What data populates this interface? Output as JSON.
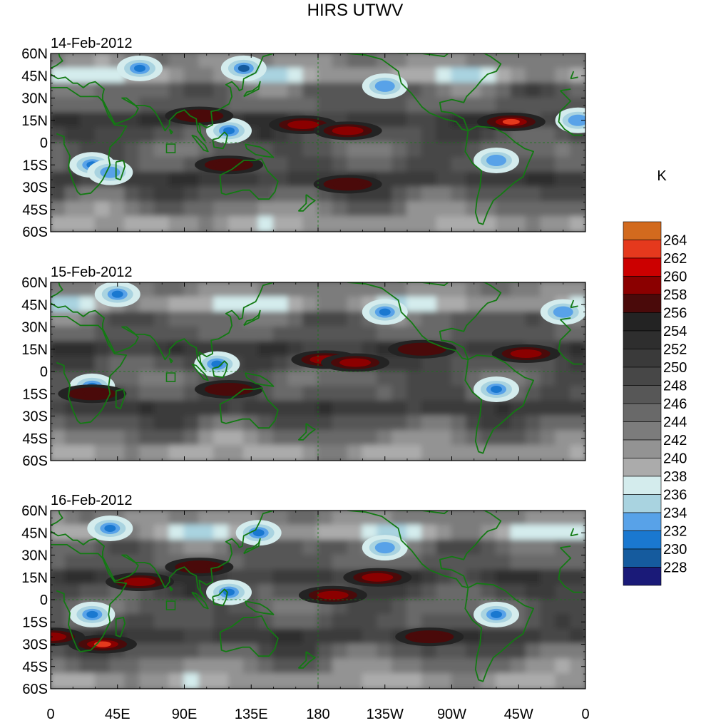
{
  "chart_data": {
    "type": "heatmap",
    "title": "HIRS UTWV",
    "unit_label": "K",
    "panels": [
      {
        "date": "14-Feb-2012",
        "hot_bands": [
          {
            "lon": 170,
            "lat": 12,
            "peak": 259
          },
          {
            "lon": 200,
            "lat": 8,
            "peak": 258
          },
          {
            "lon": 310,
            "lat": 14,
            "peak": 262
          },
          {
            "lon": 100,
            "lat": 18,
            "peak": 257
          },
          {
            "lon": 120,
            "lat": -15,
            "peak": 256
          },
          {
            "lon": 200,
            "lat": -28,
            "peak": 256
          }
        ],
        "moist_regions": [
          {
            "lon": 120,
            "lat": 8,
            "min": 230
          },
          {
            "lon": 28,
            "lat": -15,
            "min": 231
          },
          {
            "lon": 300,
            "lat": -12,
            "min": 232
          },
          {
            "lon": 60,
            "lat": 50,
            "min": 230
          },
          {
            "lon": 130,
            "lat": 50,
            "min": 229
          },
          {
            "lon": 225,
            "lat": 38,
            "min": 232
          },
          {
            "lon": 355,
            "lat": 15,
            "min": 232
          },
          {
            "lon": 40,
            "lat": -20,
            "min": 232
          }
        ]
      },
      {
        "date": "15-Feb-2012",
        "hot_bands": [
          {
            "lon": 185,
            "lat": 8,
            "peak": 259
          },
          {
            "lon": 205,
            "lat": 6,
            "peak": 258
          },
          {
            "lon": 320,
            "lat": 12,
            "peak": 259
          },
          {
            "lon": 250,
            "lat": 15,
            "peak": 257
          },
          {
            "lon": 28,
            "lat": -15,
            "peak": 257
          },
          {
            "lon": 120,
            "lat": -12,
            "peak": 256
          }
        ],
        "moist_regions": [
          {
            "lon": 112,
            "lat": 5,
            "min": 230
          },
          {
            "lon": 28,
            "lat": -10,
            "min": 231
          },
          {
            "lon": 300,
            "lat": -12,
            "min": 231
          },
          {
            "lon": 45,
            "lat": 52,
            "min": 230
          },
          {
            "lon": 225,
            "lat": 40,
            "min": 231
          },
          {
            "lon": 345,
            "lat": 40,
            "min": 232
          }
        ]
      },
      {
        "date": "16-Feb-2012",
        "hot_bands": [
          {
            "lon": 190,
            "lat": 3,
            "peak": 259
          },
          {
            "lon": 220,
            "lat": 15,
            "peak": 258
          },
          {
            "lon": 35,
            "lat": -30,
            "peak": 263
          },
          {
            "lon": 0,
            "lat": -25,
            "peak": 258
          },
          {
            "lon": 60,
            "lat": 12,
            "peak": 258
          },
          {
            "lon": 100,
            "lat": 22,
            "peak": 257
          },
          {
            "lon": 255,
            "lat": -25,
            "peak": 257
          }
        ],
        "moist_regions": [
          {
            "lon": 120,
            "lat": 5,
            "min": 230
          },
          {
            "lon": 28,
            "lat": -10,
            "min": 231
          },
          {
            "lon": 300,
            "lat": -10,
            "min": 231
          },
          {
            "lon": 40,
            "lat": 48,
            "min": 230
          },
          {
            "lon": 225,
            "lat": 35,
            "min": 232
          },
          {
            "lon": 140,
            "lat": 45,
            "min": 231
          }
        ]
      }
    ],
    "x_ticks": [
      "0",
      "45E",
      "90E",
      "135E",
      "180",
      "135W",
      "90W",
      "45W",
      "0"
    ],
    "x_tick_lons": [
      0,
      45,
      90,
      135,
      180,
      225,
      270,
      315,
      360
    ],
    "y_ticks": [
      "60N",
      "45N",
      "30N",
      "15N",
      "0",
      "15S",
      "30S",
      "45S",
      "60S"
    ],
    "y_tick_lats": [
      60,
      45,
      30,
      15,
      0,
      -15,
      -30,
      -45,
      -60
    ],
    "xlim": [
      0,
      360
    ],
    "ylim": [
      -60,
      60
    ],
    "colorbar": {
      "levels": [
        "264",
        "262",
        "260",
        "258",
        "256",
        "254",
        "252",
        "250",
        "248",
        "246",
        "244",
        "242",
        "240",
        "238",
        "236",
        "234",
        "232",
        "230",
        "228"
      ],
      "colors": [
        "#d26a1e",
        "#e5391d",
        "#cc0000",
        "#8b0000",
        "#4a0a0a",
        "#232323",
        "#2e2e2e",
        "#3a3a3a",
        "#474747",
        "#575757",
        "#696969",
        "#7c7c7c",
        "#939393",
        "#ababab",
        "#d4eced",
        "#a9d3e0",
        "#58a2e8",
        "#1a78d0",
        "#155b9e",
        "#1a1a78"
      ]
    },
    "grid": false,
    "coastline_color": "#137a13"
  }
}
